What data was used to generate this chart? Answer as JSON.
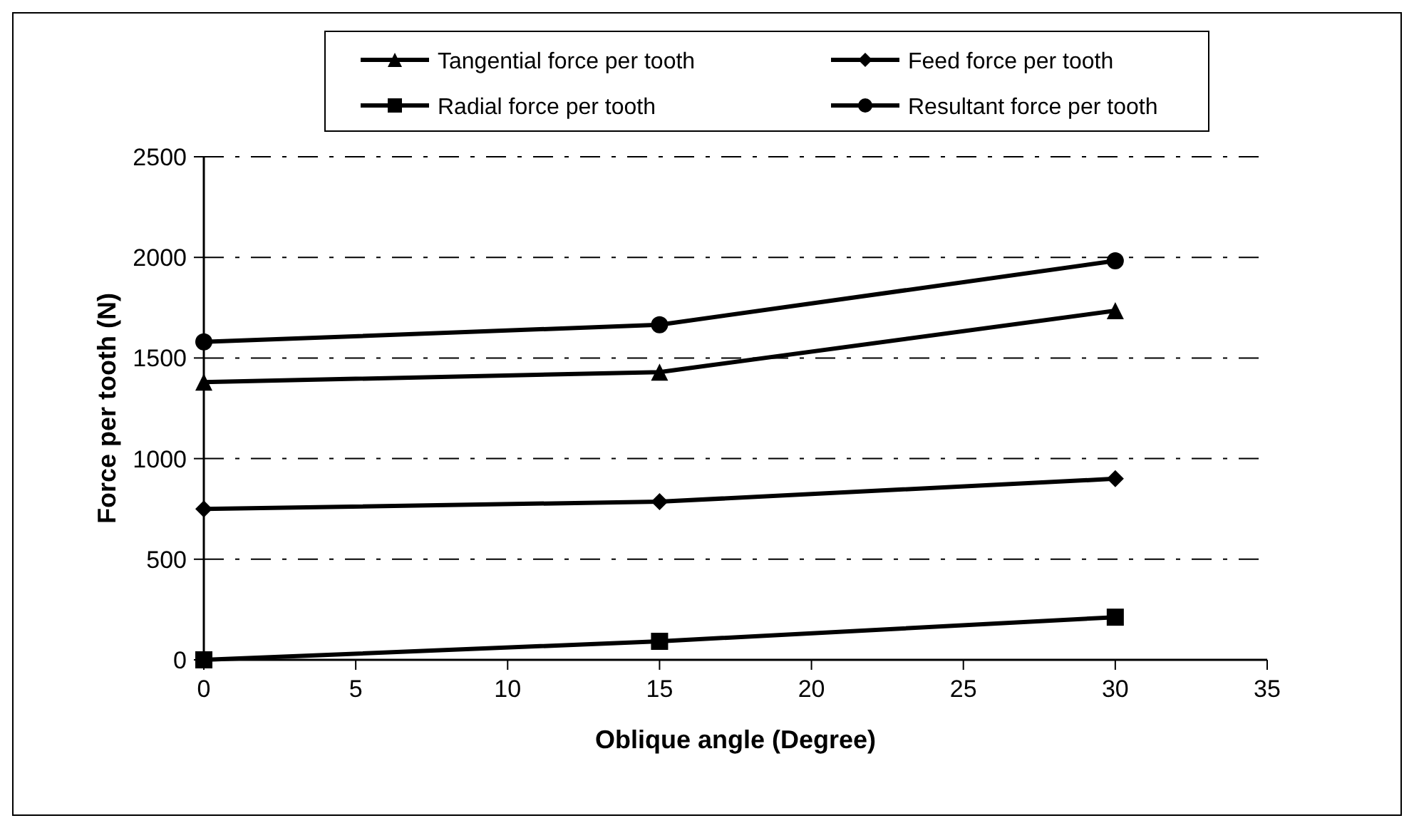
{
  "chart_data": {
    "type": "line",
    "xlabel": "Oblique angle (Degree)",
    "ylabel": "Force per tooth (N)",
    "x": [
      0,
      15,
      30
    ],
    "xlim": [
      0,
      35
    ],
    "xticks": [
      0,
      5,
      10,
      15,
      20,
      25,
      30,
      35
    ],
    "ylim": [
      0,
      2500
    ],
    "yticks": [
      0,
      500,
      1000,
      1500,
      2000,
      2500
    ],
    "grid": "y",
    "legend": "top",
    "series": [
      {
        "name": "Tangential force per tooth",
        "color": "#000000",
        "marker": "triangle",
        "values": [
          1380,
          1430,
          1735
        ]
      },
      {
        "name": "Feed force per tooth",
        "color": "#000000",
        "marker": "diamond",
        "values": [
          750,
          786,
          900
        ]
      },
      {
        "name": "Radial force per tooth",
        "color": "#000000",
        "marker": "square",
        "values": [
          0,
          92,
          212
        ]
      },
      {
        "name": "Resultant force per tooth",
        "color": "#000000",
        "marker": "circle",
        "values": [
          1580,
          1665,
          1983
        ]
      }
    ]
  }
}
